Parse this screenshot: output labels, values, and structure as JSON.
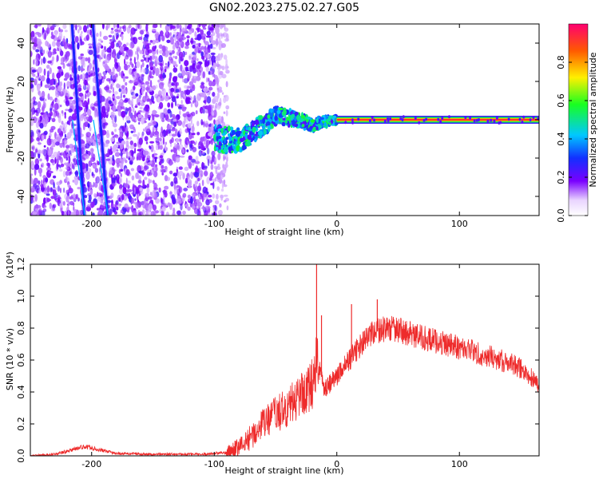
{
  "title": "GN02.2023.275.02.27.G05",
  "colors": {
    "snr_line": "#ee2b2b",
    "axis": "#000000",
    "background": "#ffffff"
  },
  "chart_data": [
    {
      "type": "heatmap",
      "name": "spectrogram",
      "xlabel": "Height of straight line (km)",
      "ylabel": "Frequency (Hz)",
      "xlim": [
        -250,
        165
      ],
      "ylim": [
        -50,
        50
      ],
      "x_ticks": [
        -200,
        -100,
        0,
        100
      ],
      "y_ticks": [
        -40,
        -20,
        0,
        20,
        40
      ],
      "colorbar": {
        "label": "Normalized spectral amplitude",
        "range": [
          0.0,
          1.0
        ],
        "ticks": [
          0.0,
          0.2,
          0.4,
          0.6,
          0.8
        ],
        "colormap": "rainbow"
      },
      "features": {
        "noise_region_x": [
          -250,
          -95
        ],
        "streak_1": {
          "x_at_top": -216,
          "x_at_bottom": -206
        },
        "streak_2": {
          "x_at_top": -199,
          "x_at_bottom": -187
        },
        "signal_track": [
          {
            "x": -100,
            "y": -10
          },
          {
            "x": -80,
            "y": -11
          },
          {
            "x": -60,
            "y": -3
          },
          {
            "x": -50,
            "y": 2
          },
          {
            "x": -40,
            "y": 1
          },
          {
            "x": -30,
            "y": 0
          },
          {
            "x": -20,
            "y": -3
          },
          {
            "x": -10,
            "y": -1
          },
          {
            "x": 0,
            "y": 0
          },
          {
            "x": 165,
            "y": 0
          }
        ]
      }
    },
    {
      "type": "line",
      "name": "snr",
      "xlabel": "Height of straight line (km)",
      "ylabel": "SNR (10 * v/v)",
      "y_multiplier": "(x10⁴)",
      "xlim": [
        -250,
        165
      ],
      "ylim": [
        0.0,
        1.2
      ],
      "x_ticks": [
        -200,
        -100,
        0,
        100
      ],
      "y_ticks": [
        0.0,
        0.2,
        0.4,
        0.6,
        0.8,
        1.0,
        1.2
      ],
      "series": [
        {
          "x": [
            -250,
            -230,
            -215,
            -205,
            -195,
            -180,
            -150,
            -110,
            -90,
            -80,
            -70,
            -60,
            -50,
            -40,
            -30,
            -20,
            -16,
            -10,
            0,
            10,
            20,
            30,
            40,
            50,
            60,
            70,
            80,
            90,
            100,
            110,
            120,
            130,
            140,
            150,
            160,
            165
          ],
          "y": [
            0.0,
            0.01,
            0.04,
            0.06,
            0.04,
            0.015,
            0.01,
            0.01,
            0.02,
            0.05,
            0.12,
            0.2,
            0.26,
            0.3,
            0.38,
            0.45,
            0.6,
            0.42,
            0.5,
            0.6,
            0.7,
            0.77,
            0.8,
            0.79,
            0.76,
            0.74,
            0.72,
            0.7,
            0.68,
            0.66,
            0.63,
            0.61,
            0.58,
            0.55,
            0.48,
            0.45
          ]
        }
      ],
      "spikes": [
        {
          "x": -16.5,
          "y": 1.23
        },
        {
          "x": -12.5,
          "y": 0.88
        },
        {
          "x": 12,
          "y": 0.95
        },
        {
          "x": 33,
          "y": 0.98
        }
      ]
    }
  ]
}
